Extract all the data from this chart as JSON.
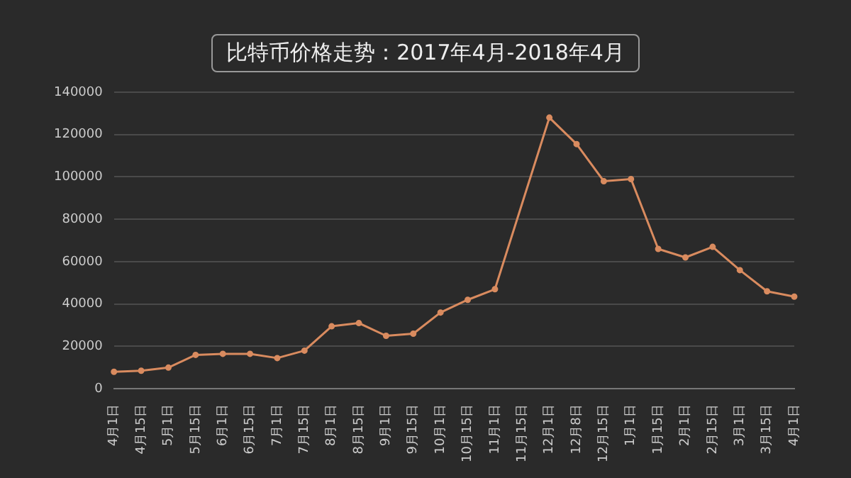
{
  "chart_data": {
    "type": "line",
    "title": "比特币价格走势：2017年4月-2018年4月",
    "categories": [
      "4月1日",
      "4月15日",
      "5月1日",
      "5月15日",
      "6月1日",
      "6月15日",
      "7月1日",
      "7月15日",
      "8月1日",
      "8月15日",
      "9月1日",
      "9月15日",
      "10月1日",
      "10月15日",
      "11月1日",
      "11月15日",
      "12月1日",
      "12月8日",
      "12月15日",
      "1月1日",
      "1月15日",
      "2月1日",
      "2月15日",
      "3月1日",
      "3月15日",
      "4月1日"
    ],
    "series": [
      {
        "color": "#d98b5f",
        "values": [
          8000,
          8500,
          10000,
          16000,
          16500,
          16500,
          14500,
          18000,
          29500,
          31000,
          25000,
          26000,
          36000,
          42000,
          47000,
          null,
          128000,
          115500,
          98000,
          99000,
          66000,
          62000,
          67000,
          56000,
          46000,
          43500
        ]
      }
    ],
    "ylim": [
      0,
      140000
    ],
    "yticks": [
      0,
      20000,
      40000,
      60000,
      80000,
      100000,
      120000,
      140000
    ],
    "grid": "y",
    "legend": false,
    "marker": "circle",
    "line_style": "solid"
  }
}
